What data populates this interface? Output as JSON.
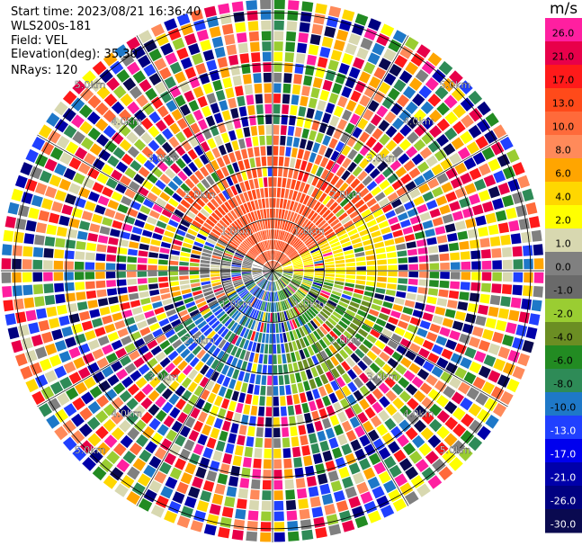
{
  "header": {
    "start_time": "Start time: 2023/08/21 16:36:40",
    "instrument": "WLS200s-181",
    "field": "Field: VEL",
    "elevation": "Elevation(deg): 35.30",
    "nrays": "NRays: 120"
  },
  "colorbar": {
    "unit": "m/s",
    "ticks": [
      "26.0",
      "21.0",
      "17.0",
      "13.0",
      "10.0",
      "8.0",
      "6.0",
      "4.0",
      "2.0",
      "1.0",
      "0.0",
      "-1.0",
      "-2.0",
      "-4.0",
      "-6.0",
      "-8.0",
      "-10.0",
      "-13.0",
      "-17.0",
      "-21.0",
      "-26.0",
      "-30.0"
    ],
    "colors": [
      "#ff1fa0",
      "#e8004a",
      "#ff1a1a",
      "#ff4a1a",
      "#ff6a3a",
      "#ff8a5a",
      "#ffa500",
      "#ffd700",
      "#ffff00",
      "#d8d8b0",
      "#808080",
      "#6a6a6a",
      "#9acd32",
      "#6b8e23",
      "#228b22",
      "#2e8b57",
      "#1e78c8",
      "#2040ff",
      "#0000ee",
      "#0000aa",
      "#000080",
      "#0a0a50"
    ]
  },
  "chart_data": {
    "type": "heatmap",
    "title": "",
    "projection": "polar PPI",
    "field": "VEL",
    "units": "m/s",
    "elevation_deg": 35.3,
    "nrays": 120,
    "range_ring_labels": [
      "1.0km",
      "2.0km",
      "3.0km",
      "4.0km",
      "5.0km",
      "6.0km"
    ],
    "color_levels": [
      26.0,
      21.0,
      17.0,
      13.0,
      10.0,
      8.0,
      6.0,
      4.0,
      2.0,
      1.0,
      0.0,
      -1.0,
      -2.0,
      -4.0,
      -6.0,
      -8.0,
      -10.0,
      -13.0,
      -17.0,
      -21.0,
      -26.0,
      -30.0
    ],
    "pattern": "Coherent near-range radial velocity: positive (orange-red) to the north, positive (yellow) to the east, negative (green) to the south-east and (blue) to the south; noise (random colors) beyond ~2 km."
  }
}
